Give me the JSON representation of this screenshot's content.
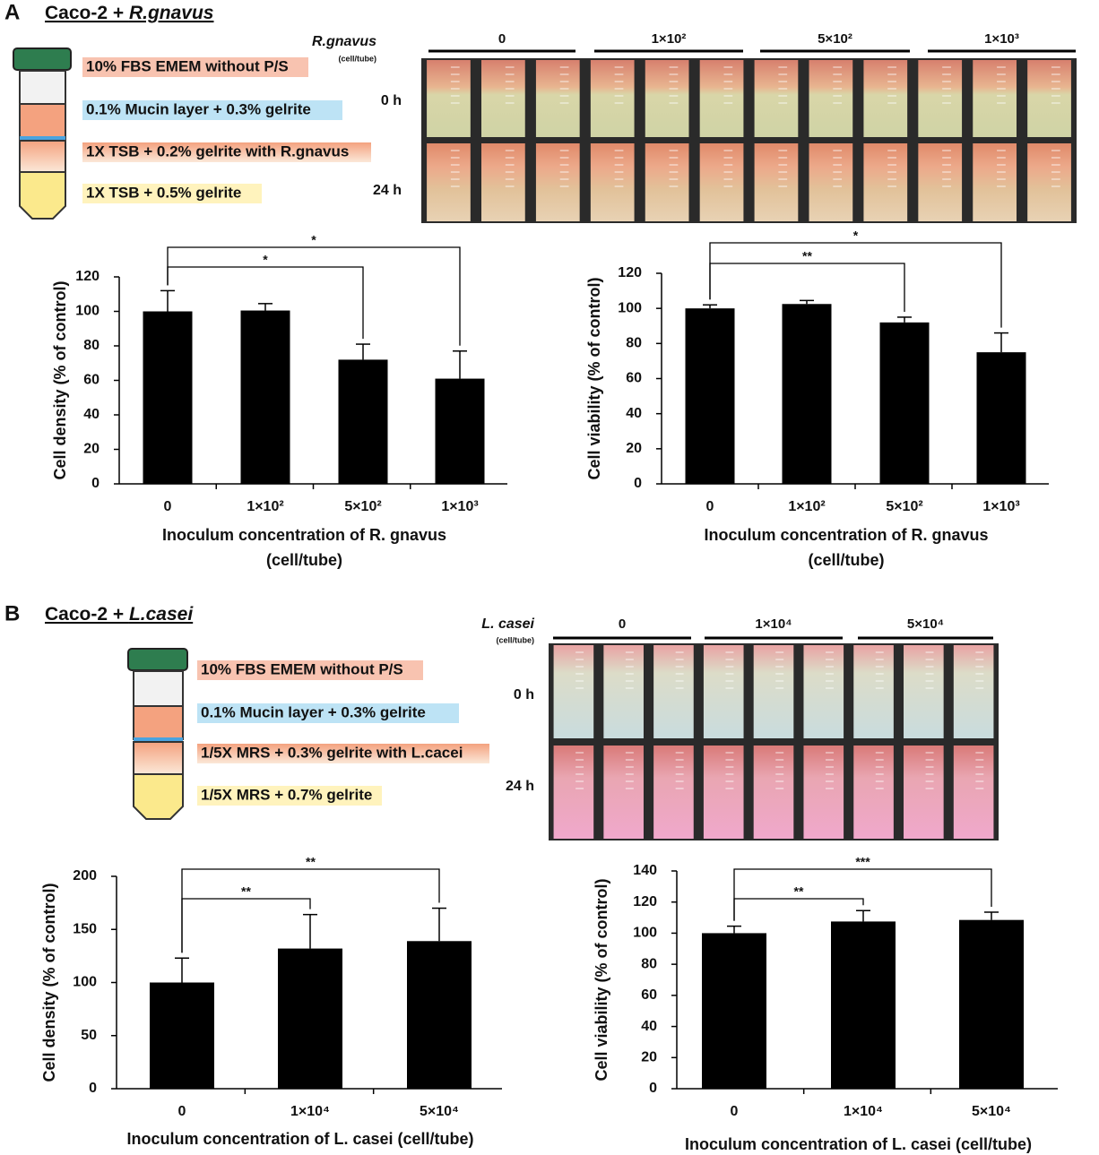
{
  "panels": [
    {
      "label": "A",
      "title": "Caco-2 + ",
      "species": "R.gnavus",
      "layers": [
        "10% FBS EMEM without P/S",
        "0.1% Mucin layer + 0.3% gelrite",
        "1X TSB + 0.2% gelrite with R.gnavus",
        "1X TSB + 0.5% gelrite"
      ],
      "organism": "R.gnavus",
      "unit": "(cell/tube)",
      "groups": [
        "0",
        "1×10²",
        "5×10²",
        "1×10³"
      ],
      "times": [
        "0 h",
        "24 h"
      ]
    },
    {
      "label": "B",
      "title": "Caco-2 + ",
      "species": "L.casei",
      "layers": [
        "10% FBS EMEM without P/S",
        "0.1% Mucin layer + 0.3% gelrite",
        "1/5X MRS + 0.3% gelrite with L.cacei",
        "1/5X MRS + 0.7% gelrite"
      ],
      "organism": "L. casei",
      "unit": "(cell/tube)",
      "groups": [
        "0",
        "1×10⁴",
        "5×10⁴"
      ],
      "times": [
        "0 h",
        "24 h"
      ]
    }
  ],
  "chart_data": [
    {
      "type": "bar",
      "ylabel": "Cell density (% of control)",
      "xlabel": [
        "Inoculum concentration of R. gnavus",
        "(cell/tube)"
      ],
      "categories": [
        "0",
        "1×10²",
        "5×10²",
        "1×10³"
      ],
      "values": [
        100,
        100.5,
        72,
        61
      ],
      "errors": [
        12,
        4,
        9,
        16
      ],
      "color": "#000000",
      "ylim": [
        0,
        120
      ],
      "yticks": [
        0,
        20,
        40,
        60,
        80,
        100,
        120
      ],
      "significance": [
        {
          "from": 0,
          "to": 2,
          "label": "*"
        },
        {
          "from": 0,
          "to": 3,
          "label": "*"
        }
      ]
    },
    {
      "type": "bar",
      "ylabel": "Cell viability (% of control)",
      "xlabel": [
        "Inoculum concentration of R. gnavus",
        "(cell/tube)"
      ],
      "categories": [
        "0",
        "1×10²",
        "5×10²",
        "1×10³"
      ],
      "values": [
        100,
        102.5,
        92,
        75
      ],
      "errors": [
        2,
        2,
        3,
        11
      ],
      "color": "#000000",
      "ylim": [
        0,
        120
      ],
      "yticks": [
        0,
        20,
        40,
        60,
        80,
        100,
        120
      ],
      "significance": [
        {
          "from": 0,
          "to": 2,
          "label": "**"
        },
        {
          "from": 0,
          "to": 3,
          "label": "*"
        }
      ]
    },
    {
      "type": "bar",
      "ylabel": "Cell density   (% of control)",
      "xlabel": [
        "Inoculum concentration of L. casei  (cell/tube)"
      ],
      "categories": [
        "0",
        "1×10⁴",
        "5×10⁴"
      ],
      "values": [
        100,
        132,
        139
      ],
      "errors": [
        23,
        32,
        31
      ],
      "color": "#000000",
      "ylim": [
        0,
        200
      ],
      "yticks": [
        0,
        50,
        100,
        150,
        200
      ],
      "significance": [
        {
          "from": 0,
          "to": 1,
          "label": "**"
        },
        {
          "from": 0,
          "to": 2,
          "label": "**"
        }
      ]
    },
    {
      "type": "bar",
      "ylabel": "Cell viability (% of control)",
      "xlabel": [
        "Inoculum concentration of L. casei (cell/tube)"
      ],
      "categories": [
        "0",
        "1×10⁴",
        "5×10⁴"
      ],
      "values": [
        100,
        107.5,
        108.5
      ],
      "errors": [
        4.5,
        7,
        5
      ],
      "color": "#000000",
      "ylim": [
        0,
        140
      ],
      "yticks": [
        0,
        20,
        40,
        60,
        80,
        100,
        120,
        140
      ],
      "significance": [
        {
          "from": 0,
          "to": 1,
          "label": "**"
        },
        {
          "from": 0,
          "to": 2,
          "label": "***"
        }
      ]
    }
  ]
}
